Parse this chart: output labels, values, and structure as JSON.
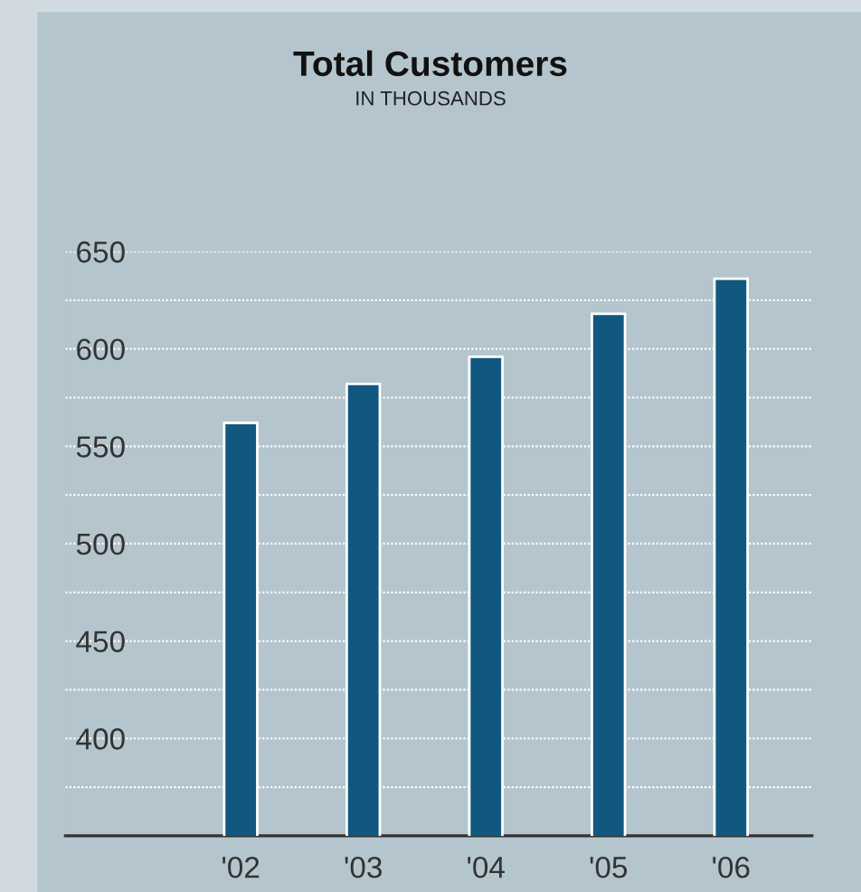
{
  "chart_data": {
    "type": "bar",
    "title": "Total Customers",
    "subtitle": "IN THOUSANDS",
    "categories": [
      "'02",
      "'03",
      "'04",
      "'05",
      "'06"
    ],
    "values": [
      562,
      582,
      596,
      618,
      636
    ],
    "color": "#10587f",
    "ylim": [
      350,
      650
    ],
    "yticks": [
      {
        "value": 375,
        "label": null
      },
      400,
      {
        "value": 425,
        "label": null
      },
      450,
      {
        "value": 475,
        "label": null
      },
      500,
      {
        "value": 525,
        "label": null
      },
      550,
      {
        "value": 575,
        "label": null
      },
      600,
      {
        "value": 625,
        "label": null
      },
      650
    ],
    "grid": "y"
  }
}
